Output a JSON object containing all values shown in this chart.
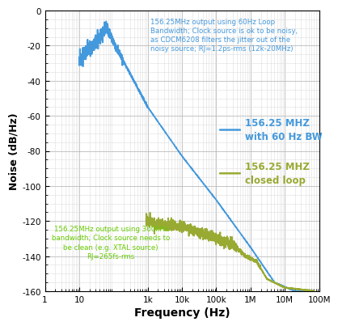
{
  "xlabel": "Frequency (Hz)",
  "ylabel": "Noise (dB/Hz)",
  "xlim_log": [
    1,
    100000000.0
  ],
  "ylim": [
    -160,
    0
  ],
  "yticks": [
    0,
    -20,
    -40,
    -60,
    -80,
    -100,
    -120,
    -140,
    -160
  ],
  "xtick_labels": [
    "1",
    "10",
    "1k",
    "10k",
    "100k",
    "1M",
    "10M",
    "100M"
  ],
  "xtick_vals": [
    1,
    10,
    1000,
    10000,
    100000,
    1000000,
    10000000,
    100000000
  ],
  "blue_color": "#4499DD",
  "green_color": "#99AA33",
  "annotation_blue_color": "#4499DD",
  "annotation_green_color": "#66CC00",
  "legend_blue": "156.25 MHZ\nwith 60 Hz BW",
  "legend_green": "156.25 MHZ\nclosed loop",
  "annotation_blue": "156.25MHz output using 60Hz Loop\nBandwidth; Clock source is ok to be noisy,\nas CDCM6208 filters the jitter out of the\nnoisy source; RJ=1.2ps-rms (12k-20MHz)",
  "annotation_green": "156.25MHz output using 300kHz\nbandwidth; Clock source needs to\nbe clean (e.g. XTAL source)\nRJ=265fs-rms",
  "bg_color": "#FFFFFF",
  "grid_major_color": "#BBBBBB",
  "grid_minor_color": "#DDDDDD"
}
